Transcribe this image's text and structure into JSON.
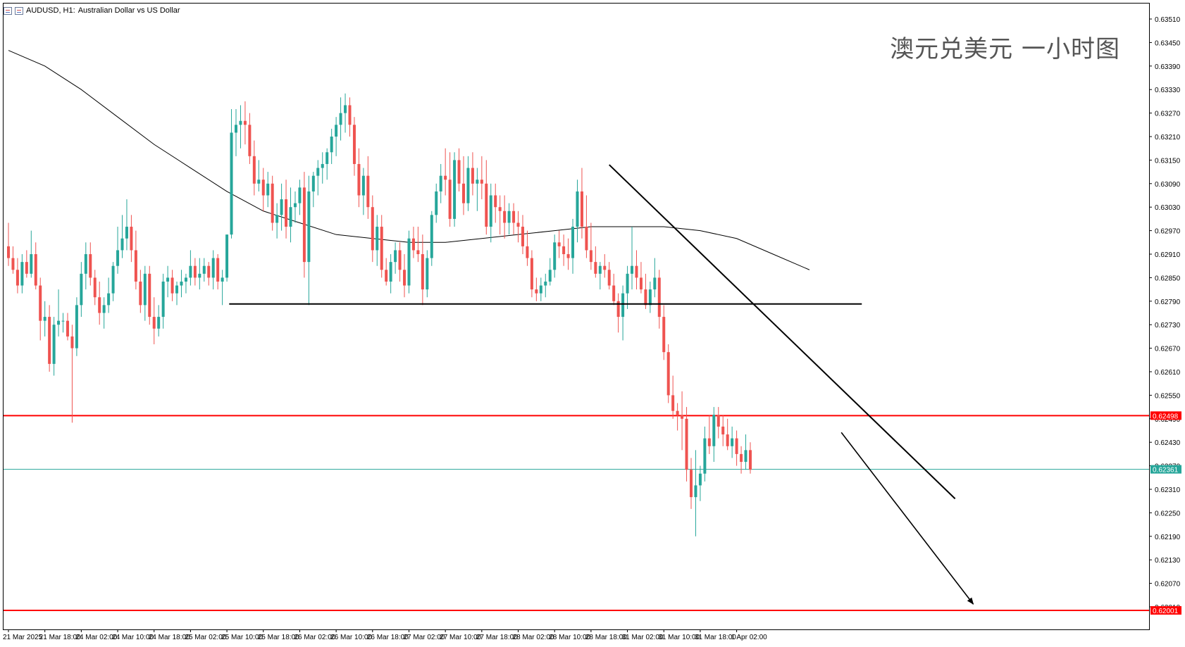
{
  "header": {
    "symbol_label": "AUDUSD, H1:",
    "description": "Australian Dollar vs US Dollar"
  },
  "overlay_title": "澳元兑美元 一小时图",
  "colors": {
    "bull": "#26a69a",
    "bear": "#ef5350",
    "ma": "#000000",
    "level_red": "#ff0000",
    "current_line": "#26a69a",
    "trendline": "#000000",
    "axis_text": "#000000"
  },
  "chart_data": {
    "type": "candlestick",
    "symbol": "AUDUSD",
    "timeframe": "H1",
    "y_axis": {
      "side": "right",
      "ylim": [
        0.6192,
        0.6354
      ],
      "ticks": [
        "0.63510",
        "0.63450",
        "0.63390",
        "0.63330",
        "0.63270",
        "0.63210",
        "0.63150",
        "0.63090",
        "0.63030",
        "0.62970",
        "0.62910",
        "0.62850",
        "0.62790",
        "0.62730",
        "0.62670",
        "0.62610",
        "0.62550",
        "0.62490",
        "0.62430",
        "0.62370",
        "0.62310",
        "0.62250",
        "0.62190",
        "0.62130",
        "0.62070",
        "0.62010"
      ]
    },
    "x_axis": {
      "labels": [
        "21 Mar 2025",
        "21 Mar 18:00",
        "24 Mar 02:00",
        "24 Mar 10:00",
        "24 Mar 18:00",
        "25 Mar 02:00",
        "25 Mar 10:00",
        "25 Mar 18:00",
        "26 Mar 02:00",
        "26 Mar 10:00",
        "26 Mar 18:00",
        "27 Mar 02:00",
        "27 Mar 10:00",
        "27 Mar 18:00",
        "28 Mar 02:00",
        "28 Mar 10:00",
        "28 Mar 18:00",
        "31 Mar 02:00",
        "31 Mar 10:00",
        "31 Mar 18:00",
        "1 Apr 02:00"
      ],
      "bars_per_label": 8
    },
    "candles": [
      [
        0.6293,
        0.6299,
        0.6288,
        0.629
      ],
      [
        0.629,
        0.6293,
        0.6286,
        0.6287
      ],
      [
        0.6287,
        0.629,
        0.6281,
        0.6283
      ],
      [
        0.6283,
        0.6291,
        0.6281,
        0.6289
      ],
      [
        0.6289,
        0.6292,
        0.6285,
        0.6286
      ],
      [
        0.6286,
        0.6297,
        0.6285,
        0.6291
      ],
      [
        0.6291,
        0.6294,
        0.6282,
        0.6283
      ],
      [
        0.6283,
        0.6285,
        0.6269,
        0.6274
      ],
      [
        0.6274,
        0.6279,
        0.627,
        0.6275
      ],
      [
        0.6275,
        0.6278,
        0.6261,
        0.6263
      ],
      [
        0.6263,
        0.6275,
        0.626,
        0.6273
      ],
      [
        0.6273,
        0.6282,
        0.627,
        0.6274
      ],
      [
        0.6274,
        0.6276,
        0.6271,
        0.6274
      ],
      [
        0.6274,
        0.6276,
        0.6269,
        0.627
      ],
      [
        0.627,
        0.6273,
        0.6248,
        0.6267
      ],
      [
        0.6267,
        0.628,
        0.6265,
        0.6278
      ],
      [
        0.6278,
        0.6289,
        0.6275,
        0.6286
      ],
      [
        0.6286,
        0.6294,
        0.6282,
        0.6291
      ],
      [
        0.6291,
        0.6294,
        0.6283,
        0.6285
      ],
      [
        0.6285,
        0.6287,
        0.6278,
        0.628
      ],
      [
        0.628,
        0.6284,
        0.6273,
        0.6276
      ],
      [
        0.6276,
        0.628,
        0.6272,
        0.6278
      ],
      [
        0.6278,
        0.6285,
        0.6276,
        0.6281
      ],
      [
        0.6281,
        0.6289,
        0.6279,
        0.6288
      ],
      [
        0.6288,
        0.6298,
        0.6286,
        0.6292
      ],
      [
        0.6292,
        0.6301,
        0.629,
        0.6295
      ],
      [
        0.6295,
        0.6305,
        0.6292,
        0.6298
      ],
      [
        0.6298,
        0.6301,
        0.6289,
        0.6292
      ],
      [
        0.6292,
        0.6297,
        0.6282,
        0.6284
      ],
      [
        0.6284,
        0.6287,
        0.6276,
        0.6278
      ],
      [
        0.6278,
        0.6288,
        0.6274,
        0.6286
      ],
      [
        0.6286,
        0.6288,
        0.6273,
        0.6275
      ],
      [
        0.6275,
        0.628,
        0.6268,
        0.6272
      ],
      [
        0.6272,
        0.6278,
        0.627,
        0.6275
      ],
      [
        0.6275,
        0.6286,
        0.6272,
        0.6284
      ],
      [
        0.6284,
        0.6288,
        0.628,
        0.6285
      ],
      [
        0.6285,
        0.6287,
        0.6279,
        0.6281
      ],
      [
        0.6281,
        0.6284,
        0.6278,
        0.6283
      ],
      [
        0.6283,
        0.6287,
        0.628,
        0.6284
      ],
      [
        0.6284,
        0.6286,
        0.6281,
        0.6285
      ],
      [
        0.6285,
        0.6292,
        0.6283,
        0.6288
      ],
      [
        0.6288,
        0.629,
        0.6283,
        0.6285
      ],
      [
        0.6285,
        0.629,
        0.6282,
        0.6286
      ],
      [
        0.6286,
        0.629,
        0.6284,
        0.6288
      ],
      [
        0.6288,
        0.6289,
        0.6283,
        0.6285
      ],
      [
        0.6285,
        0.6292,
        0.6282,
        0.629
      ],
      [
        0.629,
        0.6291,
        0.6282,
        0.6284
      ],
      [
        0.6284,
        0.6287,
        0.6278,
        0.6285
      ],
      [
        0.6285,
        0.6296,
        0.6284,
        0.6296
      ],
      [
        0.6296,
        0.6328,
        0.6295,
        0.6322
      ],
      [
        0.6322,
        0.6328,
        0.6316,
        0.6324
      ],
      [
        0.6324,
        0.6329,
        0.6318,
        0.6325
      ],
      [
        0.6325,
        0.633,
        0.6319,
        0.6324
      ],
      [
        0.6324,
        0.6327,
        0.6314,
        0.6316
      ],
      [
        0.6316,
        0.632,
        0.6306,
        0.6309
      ],
      [
        0.6309,
        0.6315,
        0.6307,
        0.631
      ],
      [
        0.631,
        0.6313,
        0.6302,
        0.6306
      ],
      [
        0.6306,
        0.6312,
        0.6303,
        0.6309
      ],
      [
        0.6309,
        0.6311,
        0.6297,
        0.6299
      ],
      [
        0.6299,
        0.6304,
        0.6295,
        0.6301
      ],
      [
        0.6301,
        0.6309,
        0.6297,
        0.6305
      ],
      [
        0.6305,
        0.631,
        0.6295,
        0.6298
      ],
      [
        0.6298,
        0.6308,
        0.6294,
        0.6303
      ],
      [
        0.6303,
        0.6307,
        0.6299,
        0.6304
      ],
      [
        0.6304,
        0.631,
        0.6301,
        0.6308
      ],
      [
        0.6308,
        0.6312,
        0.6285,
        0.6289
      ],
      [
        0.6289,
        0.6311,
        0.6278,
        0.6307
      ],
      [
        0.6307,
        0.6312,
        0.6303,
        0.6311
      ],
      [
        0.6311,
        0.6315,
        0.6306,
        0.6313
      ],
      [
        0.6313,
        0.6317,
        0.6309,
        0.6314
      ],
      [
        0.6314,
        0.6318,
        0.631,
        0.6317
      ],
      [
        0.6317,
        0.6323,
        0.6314,
        0.6321
      ],
      [
        0.6321,
        0.6326,
        0.6316,
        0.6324
      ],
      [
        0.6324,
        0.6331,
        0.632,
        0.6327
      ],
      [
        0.6327,
        0.6332,
        0.6322,
        0.6329
      ],
      [
        0.6329,
        0.6331,
        0.6321,
        0.6324
      ],
      [
        0.6324,
        0.6326,
        0.6311,
        0.6314
      ],
      [
        0.6314,
        0.6318,
        0.6303,
        0.6306
      ],
      [
        0.6306,
        0.6313,
        0.6301,
        0.6311
      ],
      [
        0.6311,
        0.6316,
        0.63,
        0.6303
      ],
      [
        0.6303,
        0.6306,
        0.6289,
        0.6292
      ],
      [
        0.6292,
        0.6301,
        0.6288,
        0.6298
      ],
      [
        0.6298,
        0.6301,
        0.6285,
        0.6287
      ],
      [
        0.6287,
        0.629,
        0.6283,
        0.6284
      ],
      [
        0.6284,
        0.6291,
        0.6281,
        0.6289
      ],
      [
        0.6289,
        0.6294,
        0.6286,
        0.6292
      ],
      [
        0.6292,
        0.6294,
        0.6284,
        0.6287
      ],
      [
        0.6287,
        0.6291,
        0.628,
        0.6283
      ],
      [
        0.6283,
        0.6297,
        0.6281,
        0.6295
      ],
      [
        0.6295,
        0.6298,
        0.629,
        0.6292
      ],
      [
        0.6292,
        0.6298,
        0.6289,
        0.6291
      ],
      [
        0.6291,
        0.6296,
        0.6278,
        0.6282
      ],
      [
        0.6282,
        0.6292,
        0.628,
        0.629
      ],
      [
        0.629,
        0.6302,
        0.6288,
        0.6301
      ],
      [
        0.6301,
        0.6309,
        0.6299,
        0.6307
      ],
      [
        0.6307,
        0.6314,
        0.6304,
        0.6311
      ],
      [
        0.6311,
        0.6318,
        0.6306,
        0.631
      ],
      [
        0.631,
        0.6317,
        0.6298,
        0.63
      ],
      [
        0.63,
        0.6317,
        0.6298,
        0.6315
      ],
      [
        0.6315,
        0.6318,
        0.6307,
        0.6309
      ],
      [
        0.6309,
        0.6316,
        0.6301,
        0.6304
      ],
      [
        0.6304,
        0.6316,
        0.6302,
        0.6313
      ],
      [
        0.6313,
        0.6317,
        0.6306,
        0.6309
      ],
      [
        0.6309,
        0.6313,
        0.6302,
        0.631
      ],
      [
        0.631,
        0.6316,
        0.6305,
        0.6309
      ],
      [
        0.6309,
        0.6315,
        0.6296,
        0.6298
      ],
      [
        0.6298,
        0.6309,
        0.6294,
        0.6306
      ],
      [
        0.6306,
        0.6309,
        0.6299,
        0.6303
      ],
      [
        0.6303,
        0.6306,
        0.6296,
        0.6302
      ],
      [
        0.6302,
        0.6306,
        0.6295,
        0.6299
      ],
      [
        0.6299,
        0.6304,
        0.6296,
        0.6302
      ],
      [
        0.6302,
        0.6304,
        0.6296,
        0.6299
      ],
      [
        0.6299,
        0.6302,
        0.6294,
        0.6298
      ],
      [
        0.6298,
        0.6301,
        0.6291,
        0.6293
      ],
      [
        0.6293,
        0.6297,
        0.6288,
        0.629
      ],
      [
        0.629,
        0.6292,
        0.628,
        0.6282
      ],
      [
        0.6282,
        0.6285,
        0.6279,
        0.6281
      ],
      [
        0.6281,
        0.6285,
        0.6279,
        0.6283
      ],
      [
        0.6283,
        0.6286,
        0.628,
        0.6284
      ],
      [
        0.6284,
        0.629,
        0.6283,
        0.6287
      ],
      [
        0.6287,
        0.6296,
        0.6285,
        0.6294
      ],
      [
        0.6294,
        0.6297,
        0.629,
        0.6293
      ],
      [
        0.6293,
        0.6296,
        0.6288,
        0.6291
      ],
      [
        0.6291,
        0.6295,
        0.6287,
        0.629
      ],
      [
        0.629,
        0.63,
        0.6286,
        0.6298
      ],
      [
        0.6298,
        0.631,
        0.6294,
        0.6307
      ],
      [
        0.6307,
        0.6313,
        0.6295,
        0.6298
      ],
      [
        0.6298,
        0.6306,
        0.629,
        0.6292
      ],
      [
        0.6292,
        0.6299,
        0.6287,
        0.6289
      ],
      [
        0.6289,
        0.6293,
        0.6285,
        0.6286
      ],
      [
        0.6286,
        0.6289,
        0.6282,
        0.6288
      ],
      [
        0.6288,
        0.6291,
        0.6285,
        0.6287
      ],
      [
        0.6287,
        0.6289,
        0.6282,
        0.6283
      ],
      [
        0.6283,
        0.6286,
        0.6278,
        0.6279
      ],
      [
        0.6279,
        0.6281,
        0.6271,
        0.6275
      ],
      [
        0.6275,
        0.6283,
        0.6269,
        0.6281
      ],
      [
        0.6281,
        0.6288,
        0.6277,
        0.6286
      ],
      [
        0.6286,
        0.6298,
        0.6282,
        0.6288
      ],
      [
        0.6288,
        0.6292,
        0.6282,
        0.6285
      ],
      [
        0.6285,
        0.6289,
        0.6281,
        0.6282
      ],
      [
        0.6282,
        0.6286,
        0.6277,
        0.6278
      ],
      [
        0.6278,
        0.6284,
        0.6276,
        0.6282
      ],
      [
        0.6282,
        0.629,
        0.628,
        0.6285
      ],
      [
        0.6285,
        0.6287,
        0.6272,
        0.6275
      ],
      [
        0.6275,
        0.6278,
        0.6264,
        0.6266
      ],
      [
        0.6266,
        0.6268,
        0.6253,
        0.6255
      ],
      [
        0.6255,
        0.626,
        0.6249,
        0.6251
      ],
      [
        0.6251,
        0.6253,
        0.6246,
        0.625
      ],
      [
        0.625,
        0.6256,
        0.6241,
        0.6249
      ],
      [
        0.6249,
        0.6252,
        0.6233,
        0.6236
      ],
      [
        0.6236,
        0.6239,
        0.6226,
        0.6229
      ],
      [
        0.6229,
        0.6241,
        0.6219,
        0.6232
      ],
      [
        0.6232,
        0.6237,
        0.6228,
        0.6235
      ],
      [
        0.6235,
        0.6247,
        0.6233,
        0.6244
      ],
      [
        0.6244,
        0.625,
        0.624,
        0.6242
      ],
      [
        0.6242,
        0.6252,
        0.6238,
        0.625
      ],
      [
        0.625,
        0.6252,
        0.6244,
        0.6247
      ],
      [
        0.6247,
        0.625,
        0.6242,
        0.6245
      ],
      [
        0.6245,
        0.6249,
        0.6241,
        0.6242
      ],
      [
        0.6242,
        0.6247,
        0.6239,
        0.6244
      ],
      [
        0.6244,
        0.6246,
        0.6237,
        0.624
      ],
      [
        0.624,
        0.6242,
        0.6235,
        0.6238
      ],
      [
        0.6238,
        0.6245,
        0.6236,
        0.6241
      ],
      [
        0.6241,
        0.6243,
        0.6235,
        0.6236
      ]
    ],
    "moving_average": [
      [
        0,
        0.6343
      ],
      [
        8,
        0.6339
      ],
      [
        16,
        0.6333
      ],
      [
        24,
        0.6326
      ],
      [
        32,
        0.6319
      ],
      [
        40,
        0.6313
      ],
      [
        48,
        0.6307
      ],
      [
        56,
        0.6302
      ],
      [
        64,
        0.6299
      ],
      [
        72,
        0.6296
      ],
      [
        80,
        0.6295
      ],
      [
        88,
        0.6294
      ],
      [
        96,
        0.6294
      ],
      [
        104,
        0.6295
      ],
      [
        112,
        0.6296
      ],
      [
        120,
        0.6297
      ],
      [
        128,
        0.6298
      ],
      [
        136,
        0.6298
      ],
      [
        144,
        0.6298
      ],
      [
        152,
        0.6297
      ],
      [
        160,
        0.6295
      ],
      [
        168,
        0.6291
      ],
      [
        176,
        0.6287
      ]
    ],
    "current_price": {
      "value": 0.62361,
      "label": "0.62361"
    },
    "horizontal_levels": [
      {
        "name": "resistance-red",
        "value": 0.62498,
        "label": "0.62498",
        "color": "#ff0000"
      },
      {
        "name": "target-red",
        "value": 0.62001,
        "label": "0.62001",
        "color": "#ff0000"
      }
    ],
    "drawn_lines": [
      {
        "name": "support-line",
        "x1": 48.5,
        "y1": 0.62783,
        "x2": 187.5,
        "y2": 0.62783,
        "arrow": false
      },
      {
        "name": "descending-trendline",
        "x1": 132,
        "y1": 0.63138,
        "x2": 208,
        "y2": 0.62286,
        "arrow": false
      },
      {
        "name": "projection-arrow",
        "x1": 183,
        "y1": 0.62455,
        "x2": 212,
        "y2": 0.62017,
        "arrow": true
      }
    ]
  }
}
